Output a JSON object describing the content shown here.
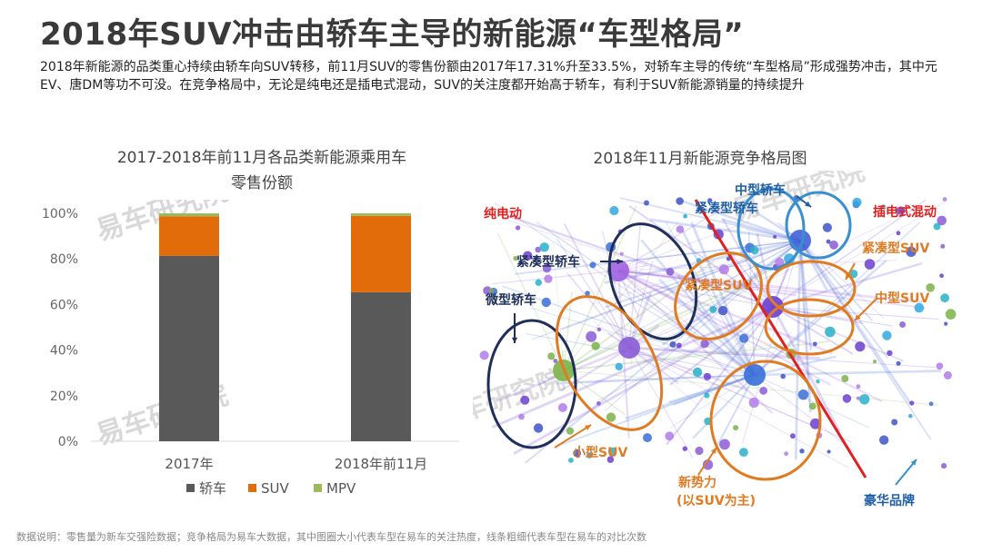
{
  "header": {
    "title": "2018年SUV冲击由轿车主导的新能源“车型格局”",
    "subtitle": "2018年新能源的品类重心持续由轿车向SUV转移，前11月SUV的零售份额由2017年17.31%升至33.5%，对轿车主导的传统“车型格局”形成强势冲击，其中元EV、唐DM等功不可没。在竞争格局中，无论是纯电还是插电式混动，SUV的关注度都开始高于轿车，有利于SUV新能源销量的持续提升"
  },
  "chart_data": {
    "type": "bar",
    "stacked": true,
    "title": "2017-2018年前11月各品类新能源乘用车零售份额",
    "title_line1": "2017-2018年前11月各品类新能源乘用车",
    "title_line2": "零售份额",
    "categories": [
      "2017年",
      "2018年前11月"
    ],
    "series": [
      {
        "name": "轿车",
        "values": [
          81.4,
          65.4
        ],
        "color": "#595959"
      },
      {
        "name": "SUV",
        "values": [
          17.31,
          33.5
        ],
        "color": "#e36c0a"
      },
      {
        "name": "MPV",
        "values": [
          1.29,
          1.1
        ],
        "color": "#9bbb59"
      }
    ],
    "ylim": [
      0,
      100
    ],
    "yticks": [
      "0%",
      "20%",
      "40%",
      "60%",
      "80%",
      "100%"
    ],
    "grid": false,
    "legend": "bottom",
    "watermark": "易车研究院"
  },
  "network": {
    "title": "2018年11月新能源竞争格局图",
    "labels": {
      "pure_ev": "纯电动",
      "phev": "插电式混动",
      "compact_sedan_left": "紧凑型轿车",
      "micro_sedan": "微型轿车",
      "compact_suv_mid": "紧凑型SUV",
      "mid_sedan": "中型轿车",
      "compact_sedan_right": "紧凑型轿车",
      "compact_suv_right": "紧凑型SUV",
      "mid_suv": "中型SUV",
      "small_suv": "小型SUV",
      "new_forces_1": "新势力",
      "new_forces_2": "(以SUV为主)",
      "luxury": "豪华品牌"
    },
    "watermark": "易车研究院"
  },
  "footnote": "数据说明：零售量为新车交强险数据；竞争格局为易车大数据，其中图圈大小代表车型在易车的关注热度，线条粗细代表车型在易车的对比次数"
}
